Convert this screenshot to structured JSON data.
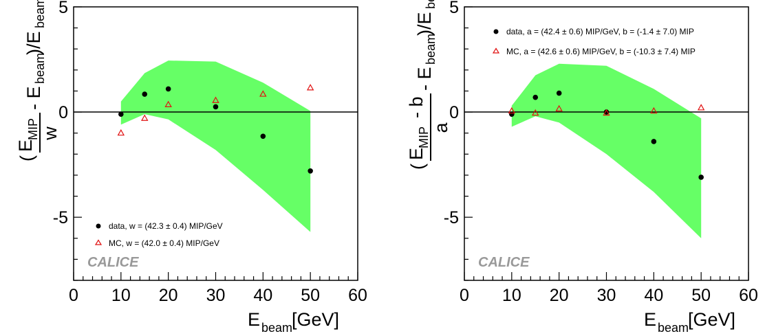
{
  "colors": {
    "band": "#66ff66",
    "data": "#000000",
    "mc": "#e01010",
    "axis": "#000000",
    "watermark": "#999999"
  },
  "chart_data": [
    {
      "type": "scatter",
      "xlabel": "E",
      "xlabel_sub": "beam",
      "xlabel_unit": "[GeV]",
      "ylabel_unit": "[%]",
      "xlim": [
        0,
        60
      ],
      "ylim": [
        -8,
        5
      ],
      "xticks": [
        0,
        10,
        20,
        30,
        40,
        50,
        60
      ],
      "yticks": [
        5,
        0,
        -5
      ],
      "grid": false,
      "legend_position": "bottom-left",
      "watermark": "CALICE",
      "series": [
        {
          "name": "data, w = (42.3 ± 0.4) MIP/GeV",
          "marker": "circle",
          "x": [
            10,
            15,
            20,
            30,
            40,
            50
          ],
          "y": [
            -0.1,
            0.85,
            1.1,
            0.25,
            -1.15,
            -2.8
          ]
        },
        {
          "name": "MC, w = (42.0 ± 0.4) MIP/GeV",
          "marker": "triangle",
          "x": [
            10,
            15,
            20,
            30,
            40,
            50
          ],
          "y": [
            -1.0,
            -0.3,
            0.35,
            0.55,
            0.85,
            1.15
          ]
        }
      ],
      "band_upper": {
        "x": [
          10,
          15,
          20,
          30,
          40,
          50
        ],
        "y": [
          0.5,
          1.85,
          2.45,
          2.4,
          1.4,
          0.05
        ]
      },
      "band_lower": {
        "x": [
          10,
          15,
          20,
          30,
          40,
          50
        ],
        "y": [
          -0.6,
          -0.1,
          -0.35,
          -1.8,
          -3.7,
          -5.7
        ]
      }
    },
    {
      "type": "scatter",
      "xlabel": "E",
      "xlabel_sub": "beam",
      "xlabel_unit": "[GeV]",
      "ylabel_unit": "[%]",
      "xlim": [
        0,
        60
      ],
      "ylim": [
        -8,
        5
      ],
      "xticks": [
        0,
        10,
        20,
        30,
        40,
        50,
        60
      ],
      "yticks": [
        5,
        0,
        -5
      ],
      "grid": false,
      "legend_position": "top-right",
      "watermark": "CALICE",
      "series": [
        {
          "name": "data, a = (42.4 ± 0.6) MIP/GeV, b = (-1.4 ± 7.0) MIP",
          "marker": "circle",
          "x": [
            10,
            15,
            20,
            30,
            40,
            50
          ],
          "y": [
            -0.1,
            0.7,
            0.9,
            0.0,
            -1.4,
            -3.1
          ]
        },
        {
          "name": "MC, a = (42.6 ± 0.6) MIP/GeV, b = (-10.3 ± 7.4) MIP",
          "marker": "triangle",
          "x": [
            10,
            15,
            20,
            30,
            40,
            50
          ],
          "y": [
            0.05,
            -0.05,
            0.15,
            -0.05,
            0.05,
            0.2
          ]
        }
      ],
      "band_upper": {
        "x": [
          10,
          15,
          20,
          30,
          40,
          50
        ],
        "y": [
          0.3,
          1.75,
          2.3,
          2.2,
          1.1,
          -0.3
        ]
      },
      "band_lower": {
        "x": [
          10,
          15,
          20,
          30,
          40,
          50
        ],
        "y": [
          -0.7,
          -0.2,
          -0.5,
          -2.0,
          -3.8,
          -6.0
        ]
      }
    }
  ]
}
